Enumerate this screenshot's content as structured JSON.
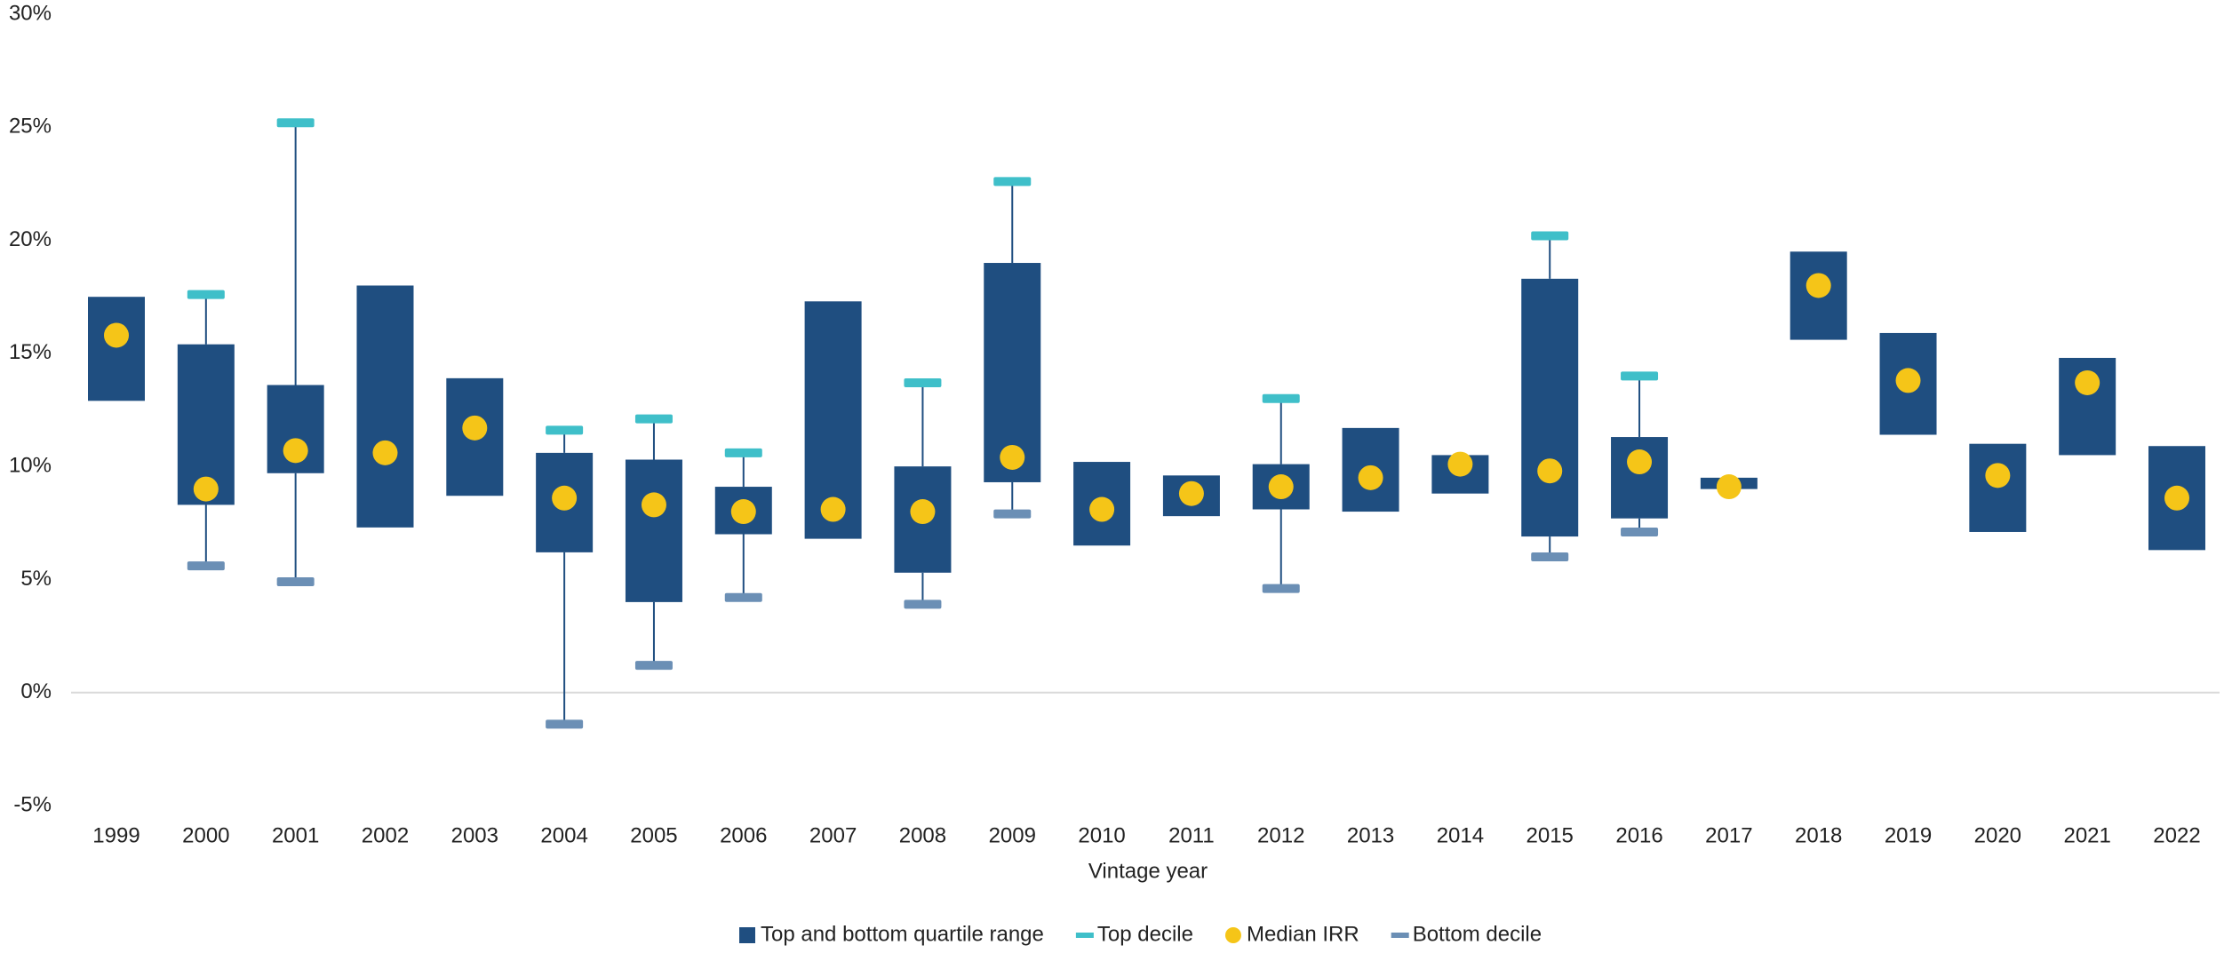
{
  "chart_data": {
    "type": "box",
    "x_label": "Vintage year",
    "categories": [
      "1999",
      "2000",
      "2001",
      "2002",
      "2003",
      "2004",
      "2005",
      "2006",
      "2007",
      "2008",
      "2009",
      "2010",
      "2011",
      "2012",
      "2013",
      "2014",
      "2015",
      "2016",
      "2017",
      "2018",
      "2019",
      "2020",
      "2021",
      "2022"
    ],
    "series": [
      {
        "name": "Top and bottom quartile range",
        "color": "#1f4e80",
        "low": [
          12.9,
          8.3,
          9.7,
          7.3,
          8.7,
          6.2,
          4.0,
          7.0,
          6.8,
          5.3,
          9.3,
          6.5,
          7.8,
          8.1,
          8.0,
          8.8,
          6.9,
          7.7,
          9.0,
          15.6,
          11.4,
          7.1,
          10.5,
          6.3
        ],
        "high": [
          17.5,
          15.4,
          13.6,
          18.0,
          13.9,
          10.6,
          10.3,
          9.1,
          17.3,
          10.0,
          19.0,
          10.2,
          9.6,
          10.1,
          11.7,
          10.5,
          18.3,
          11.3,
          9.5,
          19.5,
          15.9,
          11.0,
          14.8,
          10.9
        ]
      },
      {
        "name": "Top decile",
        "color": "#3fbfc9",
        "values": [
          null,
          17.6,
          25.2,
          null,
          null,
          11.6,
          12.1,
          10.6,
          null,
          13.7,
          22.6,
          null,
          null,
          13.0,
          null,
          null,
          20.2,
          14.0,
          null,
          null,
          null,
          null,
          null,
          null
        ]
      },
      {
        "name": "Median IRR",
        "color": "#f5c518",
        "values": [
          15.8,
          9.0,
          10.7,
          10.6,
          11.7,
          8.6,
          8.3,
          8.0,
          8.1,
          8.0,
          10.4,
          8.1,
          8.8,
          9.1,
          9.5,
          10.1,
          9.8,
          10.2,
          9.1,
          18.0,
          13.8,
          9.6,
          13.7,
          8.6
        ]
      },
      {
        "name": "Bottom decile",
        "color": "#6b8fb5",
        "values": [
          null,
          5.6,
          4.9,
          null,
          null,
          -1.4,
          1.2,
          4.2,
          null,
          3.9,
          7.9,
          null,
          null,
          4.6,
          null,
          null,
          6.0,
          7.1,
          null,
          null,
          null,
          null,
          null,
          null
        ]
      }
    ],
    "ylim": [
      -5,
      30
    ],
    "yticks": [
      {
        "value": -5,
        "label": "-5%"
      },
      {
        "value": 0,
        "label": "0%"
      },
      {
        "value": 5,
        "label": "5%"
      },
      {
        "value": 10,
        "label": "10%"
      },
      {
        "value": 15,
        "label": "15%"
      },
      {
        "value": 20,
        "label": "20%"
      },
      {
        "value": 25,
        "label": "25%"
      },
      {
        "value": 30,
        "label": "30%"
      }
    ],
    "zero_line": true,
    "negative_tick_color": "#e02020",
    "legend": "bottom"
  }
}
